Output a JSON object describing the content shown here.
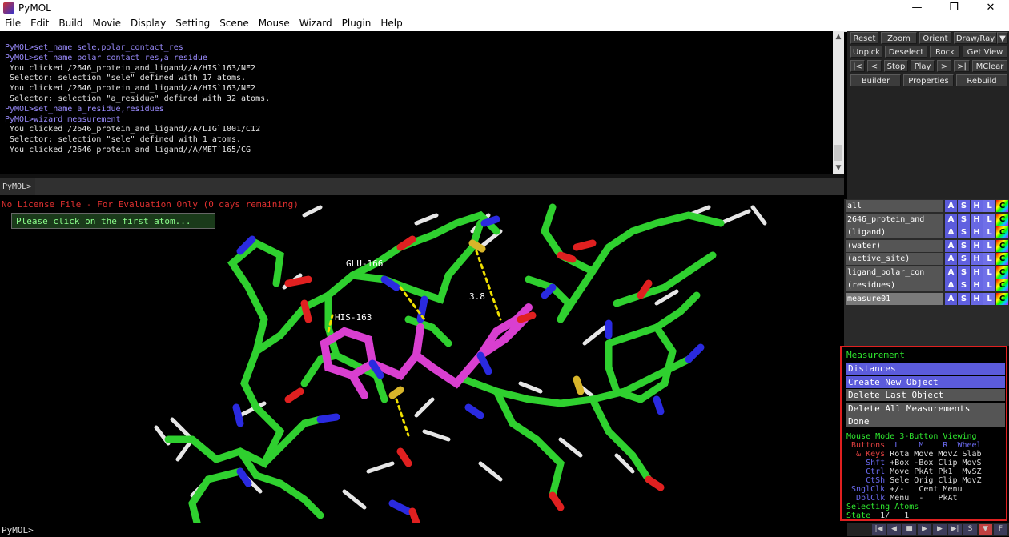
{
  "window": {
    "title": "PyMOL",
    "controls": [
      "—",
      "❐",
      "✕"
    ]
  },
  "menu": [
    "File",
    "Edit",
    "Build",
    "Movie",
    "Display",
    "Setting",
    "Scene",
    "Mouse",
    "Wizard",
    "Plugin",
    "Help"
  ],
  "console": {
    "lines": [
      {
        "kind": "cmd",
        "text": "PyMOL>set_name sele,polar_contact_res"
      },
      {
        "kind": "cmd",
        "text": "PyMOL>set_name polar_contact_res,a_residue"
      },
      {
        "kind": "out",
        "text": " You clicked /2646_protein_and_ligand//A/HIS`163/NE2"
      },
      {
        "kind": "out",
        "text": " Selector: selection \"sele\" defined with 17 atoms."
      },
      {
        "kind": "out",
        "text": " You clicked /2646_protein_and_ligand//A/HIS`163/NE2"
      },
      {
        "kind": "out",
        "text": " Selector: selection \"a_residue\" defined with 32 atoms."
      },
      {
        "kind": "cmd",
        "text": "PyMOL>set_name a_residue,residues"
      },
      {
        "kind": "cmd",
        "text": "PyMOL>wizard measurement"
      },
      {
        "kind": "out",
        "text": " You clicked /2646_protein_and_ligand//A/LIG`1001/C12"
      },
      {
        "kind": "out",
        "text": " Selector: selection \"sele\" defined with 1 atoms."
      },
      {
        "kind": "out",
        "text": " You clicked /2646_protein_and_ligand//A/MET`165/CG"
      }
    ],
    "prompt": "PyMOL>"
  },
  "buttons": {
    "reset": "Reset",
    "zoom": "Zoom",
    "orient": "Orient",
    "drawray": "Draw/Ray",
    "unpick": "Unpick",
    "deselect": "Deselect",
    "rock": "Rock",
    "getview": "Get View",
    "first": "|<",
    "prev": "<",
    "stop": "Stop",
    "play": "Play",
    "next": ">",
    "last": ">|",
    "mclear": "MClear",
    "builder": "Builder",
    "properties": "Properties",
    "rebuild": "Rebuild"
  },
  "viewer": {
    "license": "No License File - For Evaluation Only (0 days remaining)",
    "wizard_prompt": "Please click on the first atom...",
    "labels": {
      "glu": "GLU-166",
      "his": "HIS-163",
      "dist": "3.8"
    }
  },
  "objects": [
    {
      "name": "all",
      "selected": false
    },
    {
      "name": "2646_protein_and",
      "selected": false
    },
    {
      "name": "(ligand)",
      "selected": false
    },
    {
      "name": "(water)",
      "selected": false
    },
    {
      "name": "(active_site)",
      "selected": false
    },
    {
      "name": "ligand_polar_con",
      "selected": false
    },
    {
      "name": "(residues)",
      "selected": false
    },
    {
      "name": "measure01",
      "selected": true
    }
  ],
  "ashlc": [
    "A",
    "S",
    "H",
    "L",
    "C"
  ],
  "wizard": {
    "title": "Measurement",
    "buttons": [
      "Distances",
      "Create New Object",
      "Delete Last Object",
      "Delete All Measurements",
      "Done"
    ]
  },
  "mouse_mode": {
    "header": "Mouse Mode 3-Button Viewing",
    "buttons_label": " Buttons",
    "buttons_cols": "  L    M    R  Wheel",
    "keys_label": "  & Keys",
    "keys_vals": " Rota Move MovZ Slab",
    "shft_label": "    Shft",
    "shft_vals": " +Box -Box Clip MovS",
    "ctrl_label": "    Ctrl",
    "ctrl_vals": " Move PkAt Pk1  MvSZ",
    "ctsh_label": "    CtSh",
    "ctsh_vals": " Sele Orig Clip MovZ",
    "sngl_label": " SnglClk",
    "sngl_vals": " +/-   Cent Menu",
    "dbl_label": "  DblClk",
    "dbl_vals": " Menu  -   PkAt",
    "selecting": "Selecting Atoms",
    "state_label": "State",
    "state_value": "  1/   1"
  },
  "bottom_prompt": "PyMOL>_",
  "movie_controls": [
    "|◀",
    "◀",
    "■",
    "▶",
    "▶",
    "▶|",
    "S",
    "▼",
    "F"
  ],
  "colors": {
    "carbon": "#2fd02f",
    "ligand": "#d93fd0",
    "nitrogen": "#2a2ae0",
    "oxygen": "#e02020",
    "sulfur": "#d8b52a",
    "hydrogen": "#e8e8e8",
    "dash": "#f0e000",
    "accent": "#5b5bdb"
  }
}
